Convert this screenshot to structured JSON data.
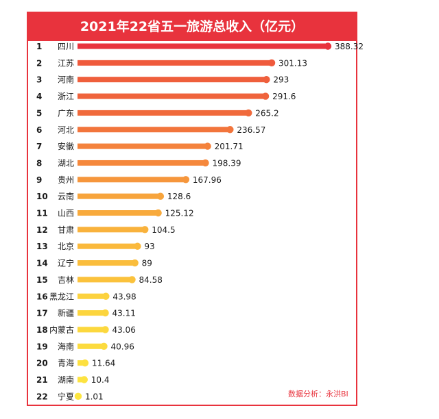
{
  "chart_data": {
    "type": "bar",
    "title": "2021年22省五一旅游总收入（亿元）",
    "source": "数据分析：永洪BI",
    "xlim": [
      0,
      388.32
    ],
    "ranks": [
      "1",
      "2",
      "3",
      "4",
      "5",
      "6",
      "7",
      "8",
      "9",
      "10",
      "11",
      "12",
      "13",
      "14",
      "15",
      "16",
      "17",
      "18",
      "19",
      "20",
      "21",
      "22"
    ],
    "categories": [
      "四川",
      "江苏",
      "河南",
      "浙江",
      "广东",
      "河北",
      "安徽",
      "湖北",
      "贵州",
      "云南",
      "山西",
      "甘肃",
      "北京",
      "辽宁",
      "吉林",
      "黑龙江",
      "新疆",
      "内蒙古",
      "海南",
      "青海",
      "湖南",
      "宁夏"
    ],
    "values": [
      388.32,
      301.13,
      293,
      291.6,
      265.2,
      236.57,
      201.71,
      198.39,
      167.96,
      128.6,
      125.12,
      104.5,
      93,
      89,
      84.58,
      43.98,
      43.11,
      43.06,
      40.96,
      11.64,
      10.4,
      1.01
    ],
    "value_labels": [
      "388.32",
      "301.13",
      "293",
      "291.6",
      "265.2",
      "236.57",
      "201.71",
      "198.39",
      "167.96",
      "128.6",
      "125.12",
      "104.5",
      "93",
      "89",
      "84.58",
      "43.98",
      "43.11",
      "43.06",
      "40.96",
      "11.64",
      "10.4",
      "1.01"
    ],
    "colors": [
      "#e8333d",
      "#ef5a3c",
      "#ef5f3c",
      "#ef633c",
      "#f06a3c",
      "#f2753c",
      "#f4823c",
      "#f5883c",
      "#f6963c",
      "#f7a43c",
      "#f8aa3c",
      "#f9b23c",
      "#fab93c",
      "#fabd3c",
      "#fbc23c",
      "#fcd23e",
      "#fcd53e",
      "#fcd83e",
      "#fcdb3e",
      "#fde040",
      "#fde340",
      "#fde640"
    ]
  }
}
